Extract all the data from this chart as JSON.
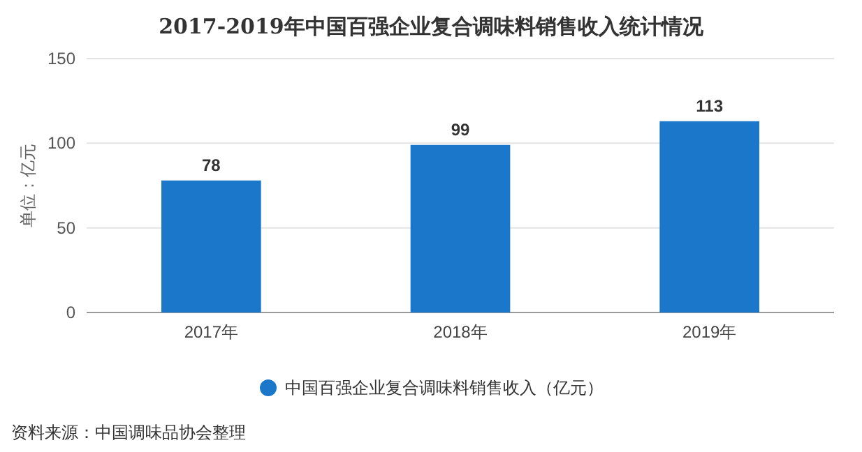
{
  "chart_data": {
    "type": "bar",
    "title": "2017-2019年中国百强企业复合调味料销售收入统计情况",
    "ylabel": "单位：亿元",
    "categories": [
      "2017年",
      "2018年",
      "2019年"
    ],
    "series": [
      {
        "name": "中国百强企业复合调味料销售收入（亿元）",
        "color": "#1b77c9",
        "values": [
          78,
          99,
          113
        ]
      }
    ],
    "ylim": [
      0,
      150
    ],
    "yticks": [
      0,
      50,
      100,
      150
    ],
    "grid": "y",
    "legend": "bottom",
    "data_labels": true,
    "annotations": [
      "资料来源：中国调味品协会整理"
    ]
  }
}
